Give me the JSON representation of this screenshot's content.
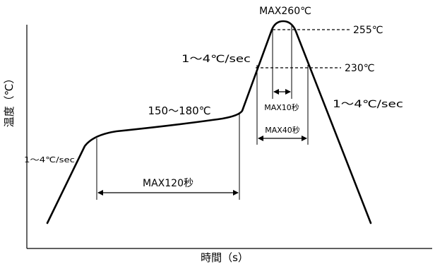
{
  "diagram": {
    "y_axis_label": "温度（℃）",
    "x_axis_label": "時間（s）",
    "peak_label": "MAX260℃",
    "temp_255_label": "255℃",
    "temp_230_label": "230℃",
    "ramp_up_label_preheat": "1～4℃/sec",
    "ramp_up_label_reflow": "1～4℃/sec",
    "ramp_down_label": "1～4℃/sec",
    "soak_label": "150～180℃",
    "soak_time_label": "MAX120秒",
    "peak_time_label": "MAX10秒",
    "reflow_time_label": "MAX40秒"
  }
}
